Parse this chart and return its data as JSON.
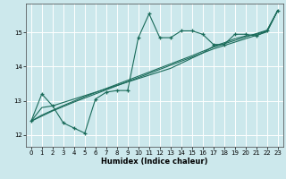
{
  "xlabel": "Humidex (Indice chaleur)",
  "background_color": "#cce8ec",
  "grid_color": "#ffffff",
  "line_color": "#1a6b5a",
  "xlim": [
    -0.5,
    23.5
  ],
  "ylim": [
    11.65,
    15.85
  ],
  "yticks": [
    12,
    13,
    14,
    15
  ],
  "xticks": [
    0,
    1,
    2,
    3,
    4,
    5,
    6,
    7,
    8,
    9,
    10,
    11,
    12,
    13,
    14,
    15,
    16,
    17,
    18,
    19,
    20,
    21,
    22,
    23
  ],
  "zigzag_x": [
    0,
    1,
    2,
    3,
    4,
    5,
    6,
    7,
    8,
    9,
    10,
    11,
    12,
    13,
    14,
    15,
    16,
    17,
    18,
    19,
    20,
    21,
    22,
    23
  ],
  "zigzag_y": [
    12.4,
    13.2,
    12.85,
    12.35,
    12.2,
    12.05,
    13.05,
    13.25,
    13.3,
    13.3,
    14.85,
    15.55,
    14.85,
    14.85,
    15.05,
    15.05,
    14.95,
    14.65,
    14.65,
    14.95,
    14.95,
    14.9,
    15.05,
    15.65
  ],
  "smooth1_x": [
    0,
    1,
    2,
    3,
    4,
    5,
    6,
    7,
    8,
    9,
    10,
    11,
    12,
    13,
    14,
    15,
    16,
    17,
    18,
    19,
    20,
    21,
    22,
    23
  ],
  "smooth1_y": [
    12.4,
    12.55,
    12.7,
    12.83,
    12.96,
    13.08,
    13.2,
    13.32,
    13.44,
    13.56,
    13.68,
    13.8,
    13.92,
    14.04,
    14.16,
    14.28,
    14.4,
    14.52,
    14.62,
    14.72,
    14.82,
    14.92,
    15.02,
    15.65
  ],
  "smooth2_x": [
    0,
    1,
    2,
    3,
    4,
    5,
    6,
    7,
    8,
    9,
    10,
    11,
    12,
    13,
    14,
    15,
    16,
    17,
    18,
    19,
    20,
    21,
    22,
    23
  ],
  "smooth2_y": [
    12.4,
    12.58,
    12.72,
    12.86,
    12.99,
    13.12,
    13.24,
    13.36,
    13.48,
    13.6,
    13.72,
    13.84,
    13.96,
    14.08,
    14.2,
    14.32,
    14.45,
    14.57,
    14.67,
    14.77,
    14.87,
    14.97,
    15.07,
    15.65
  ],
  "smooth3_x": [
    0,
    1,
    2,
    3,
    4,
    5,
    6,
    7,
    8,
    9,
    10,
    11,
    12,
    13,
    14,
    15,
    16,
    17,
    18,
    19,
    20,
    21,
    22,
    23
  ],
  "smooth3_y": [
    12.4,
    12.8,
    12.85,
    12.95,
    13.05,
    13.15,
    13.25,
    13.35,
    13.45,
    13.55,
    13.65,
    13.75,
    13.85,
    13.95,
    14.1,
    14.25,
    14.4,
    14.6,
    14.7,
    14.82,
    14.9,
    14.95,
    15.05,
    15.65
  ]
}
